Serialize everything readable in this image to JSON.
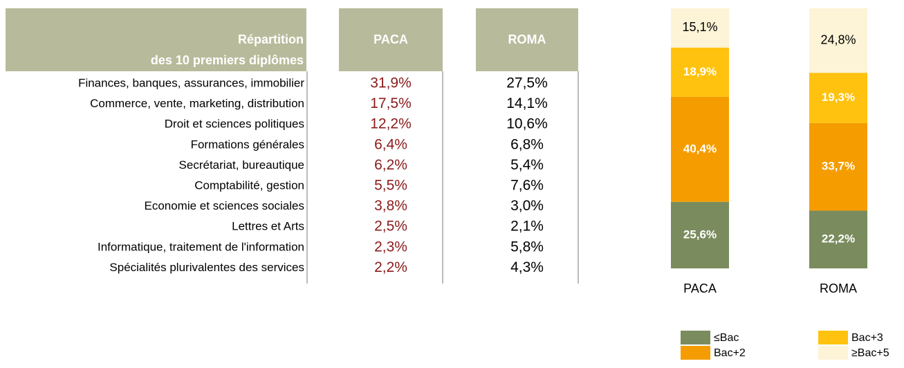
{
  "table": {
    "header": {
      "title_line1": "Répartition",
      "title_line2": "des 10 premiers diplômes",
      "col1": "PACA",
      "col2": "ROMA"
    },
    "rows": [
      [
        "Finances, banques, assurances, immobilier",
        "31,9%",
        "27,5%"
      ],
      [
        "Commerce, vente, marketing, distribution",
        "17,5%",
        "14,1%"
      ],
      [
        "Droit et sciences politiques",
        "12,2%",
        "10,6%"
      ],
      [
        "Formations générales",
        "6,4%",
        "6,8%"
      ],
      [
        "Secrétariat, bureautique",
        "6,2%",
        "5,4%"
      ],
      [
        "Comptabilité, gestion",
        "5,5%",
        "7,6%"
      ],
      [
        "Economie et sciences sociales",
        "3,8%",
        "3,0%"
      ],
      [
        "Lettres et Arts",
        "2,5%",
        "2,1%"
      ],
      [
        "Informatique, traitement de l'information",
        "2,3%",
        "5,8%"
      ],
      [
        "Spécialités plurivalentes des services",
        "2,2%",
        "4,3%"
      ]
    ]
  },
  "chart_data": {
    "type": "stacked_bar",
    "categories": [
      "PACA",
      "ROMA"
    ],
    "ylim": [
      0,
      100
    ],
    "series": [
      {
        "name": "≤Bac",
        "color": "#7a8c5e",
        "values": [
          25.6,
          22.2
        ],
        "value_labels": [
          "25,6%",
          "22,2%"
        ]
      },
      {
        "name": "Bac+2",
        "color": "#f59d00",
        "values": [
          40.4,
          33.7
        ],
        "value_labels": [
          "40,4%",
          "33,7%"
        ]
      },
      {
        "name": "Bac+3",
        "color": "#ffc20e",
        "values": [
          18.9,
          19.3
        ],
        "value_labels": [
          "18,9%",
          "19,3%"
        ]
      },
      {
        "name": "≥Bac+5",
        "color": "#fdf3d6",
        "values": [
          15.1,
          24.8
        ],
        "value_labels": [
          "15,1%",
          "24,8%"
        ]
      }
    ]
  }
}
